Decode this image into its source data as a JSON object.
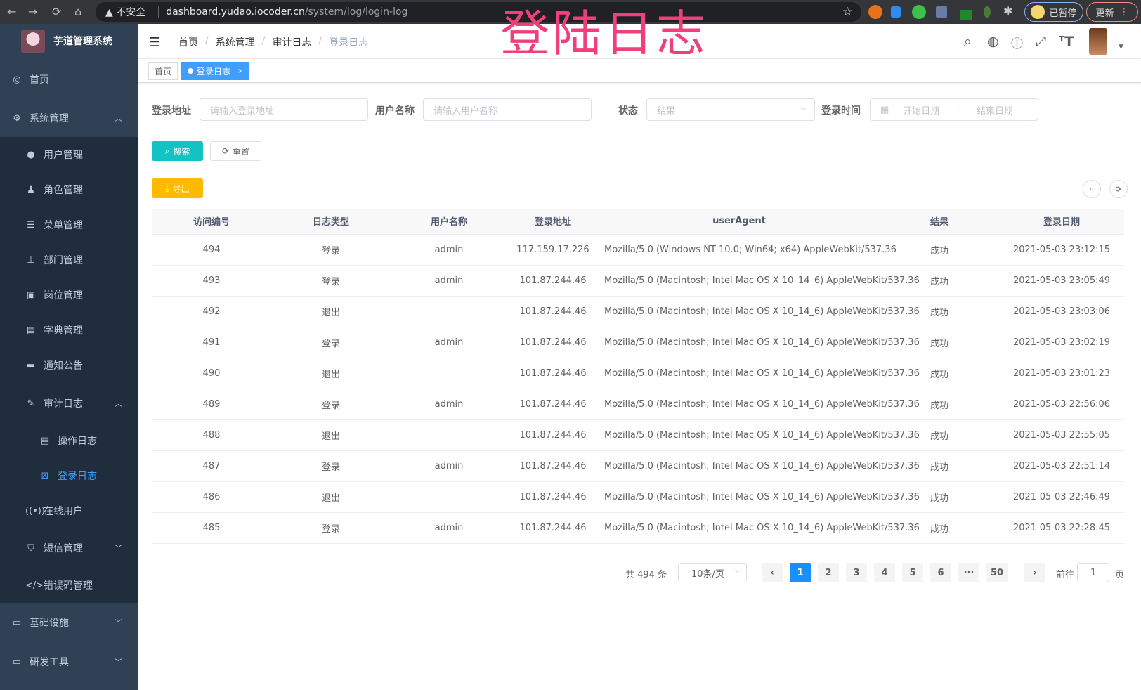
{
  "browser": {
    "back": "←",
    "forward": "→",
    "reload": "⟳",
    "home": "⌂",
    "security": "▲ 不安全",
    "url_host": "dashboard.yudao.iocoder.cn",
    "url_path": "/system/log/login-log",
    "star": "☆",
    "profile_label": "已暂停",
    "update_label": "更新",
    "menu": "⋮"
  },
  "app": {
    "name": "芋道管理系统"
  },
  "overlay_title": "登陆日志",
  "sidebar": {
    "items": [
      {
        "label": "首页",
        "icon": "dashboard-icon",
        "glyph": "◎"
      },
      {
        "label": "系统管理",
        "icon": "gear-icon",
        "glyph": "⚙",
        "chevron": "︿"
      },
      {
        "label": "用户管理",
        "icon": "user-icon",
        "glyph": "●"
      },
      {
        "label": "角色管理",
        "icon": "role-icon",
        "glyph": "♟"
      },
      {
        "label": "菜单管理",
        "icon": "menu-icon",
        "glyph": "☰"
      },
      {
        "label": "部门管理",
        "icon": "tree-icon",
        "glyph": "⊥"
      },
      {
        "label": "岗位管理",
        "icon": "post-icon",
        "glyph": "▣"
      },
      {
        "label": "字典管理",
        "icon": "dict-icon",
        "glyph": "▤"
      },
      {
        "label": "通知公告",
        "icon": "message-icon",
        "glyph": "▬"
      },
      {
        "label": "审计日志",
        "icon": "log-icon",
        "glyph": "✎",
        "chevron": "︿"
      },
      {
        "label": "操作日志",
        "icon": "form-icon",
        "glyph": "▤"
      },
      {
        "label": "登录日志",
        "icon": "logininfor-icon",
        "glyph": "⊠"
      },
      {
        "label": "在线用户",
        "icon": "online-icon",
        "glyph": "((•))"
      },
      {
        "label": "短信管理",
        "icon": "shield-icon",
        "glyph": "⛉",
        "chevron": "﹀"
      },
      {
        "label": "错误码管理",
        "icon": "code-icon",
        "glyph": "</>"
      },
      {
        "label": "基础设施",
        "icon": "monitor-icon",
        "glyph": "▭",
        "chevron": "﹀"
      },
      {
        "label": "研发工具",
        "icon": "tool-icon",
        "glyph": "▭",
        "chevron": "﹀"
      }
    ]
  },
  "breadcrumb": [
    "首页",
    "系统管理",
    "审计日志",
    "登录日志"
  ],
  "tags": {
    "home": "首页",
    "active": "登录日志",
    "close": "×"
  },
  "filters": {
    "ip_label": "登录地址",
    "ip_placeholder": "请输入登录地址",
    "user_label": "用户名称",
    "user_placeholder": "请输入用户名称",
    "status_label": "状态",
    "status_placeholder": "结果",
    "time_label": "登录时间",
    "start_placeholder": "开始日期",
    "range_sep": "-",
    "end_placeholder": "结束日期",
    "search": "搜索",
    "reset": "重置",
    "export": "导出"
  },
  "colors": {
    "sidebar": "#304156",
    "submenu": "#1f2d3d",
    "primary": "#409eff",
    "search": "#13c2c2",
    "export": "#ffba00",
    "overlay": "#f0407a"
  },
  "table": {
    "columns": [
      "访问编号",
      "日志类型",
      "用户名称",
      "登录地址",
      "userAgent",
      "结果",
      "登录日期"
    ],
    "rows": [
      [
        "494",
        "登录",
        "admin",
        "117.159.17.226",
        "Mozilla/5.0 (Windows NT 10.0; Win64; x64) AppleWebKit/537.36",
        "成功",
        "2021-05-03 23:12:15"
      ],
      [
        "493",
        "登录",
        "admin",
        "101.87.244.46",
        "Mozilla/5.0 (Macintosh; Intel Mac OS X 10_14_6) AppleWebKit/537.36",
        "成功",
        "2021-05-03 23:05:49"
      ],
      [
        "492",
        "退出",
        "",
        "101.87.244.46",
        "Mozilla/5.0 (Macintosh; Intel Mac OS X 10_14_6) AppleWebKit/537.36",
        "成功",
        "2021-05-03 23:03:06"
      ],
      [
        "491",
        "登录",
        "admin",
        "101.87.244.46",
        "Mozilla/5.0 (Macintosh; Intel Mac OS X 10_14_6) AppleWebKit/537.36",
        "成功",
        "2021-05-03 23:02:19"
      ],
      [
        "490",
        "退出",
        "",
        "101.87.244.46",
        "Mozilla/5.0 (Macintosh; Intel Mac OS X 10_14_6) AppleWebKit/537.36",
        "成功",
        "2021-05-03 23:01:23"
      ],
      [
        "489",
        "登录",
        "admin",
        "101.87.244.46",
        "Mozilla/5.0 (Macintosh; Intel Mac OS X 10_14_6) AppleWebKit/537.36",
        "成功",
        "2021-05-03 22:56:06"
      ],
      [
        "488",
        "退出",
        "",
        "101.87.244.46",
        "Mozilla/5.0 (Macintosh; Intel Mac OS X 10_14_6) AppleWebKit/537.36",
        "成功",
        "2021-05-03 22:55:05"
      ],
      [
        "487",
        "登录",
        "admin",
        "101.87.244.46",
        "Mozilla/5.0 (Macintosh; Intel Mac OS X 10_14_6) AppleWebKit/537.36",
        "成功",
        "2021-05-03 22:51:14"
      ],
      [
        "486",
        "退出",
        "",
        "101.87.244.46",
        "Mozilla/5.0 (Macintosh; Intel Mac OS X 10_14_6) AppleWebKit/537.36",
        "成功",
        "2021-05-03 22:46:49"
      ],
      [
        "485",
        "登录",
        "admin",
        "101.87.244.46",
        "Mozilla/5.0 (Macintosh; Intel Mac OS X 10_14_6) AppleWebKit/537.36",
        "成功",
        "2021-05-03 22:28:45"
      ]
    ]
  },
  "pagination": {
    "total": "共 494 条",
    "page_size": "10条/页",
    "prev": "‹",
    "pages": [
      "1",
      "2",
      "3",
      "4",
      "5",
      "6",
      "···",
      "50"
    ],
    "current": "1",
    "next": "›",
    "goto_label": "前往",
    "goto_value": "1",
    "goto_suffix": "页"
  }
}
